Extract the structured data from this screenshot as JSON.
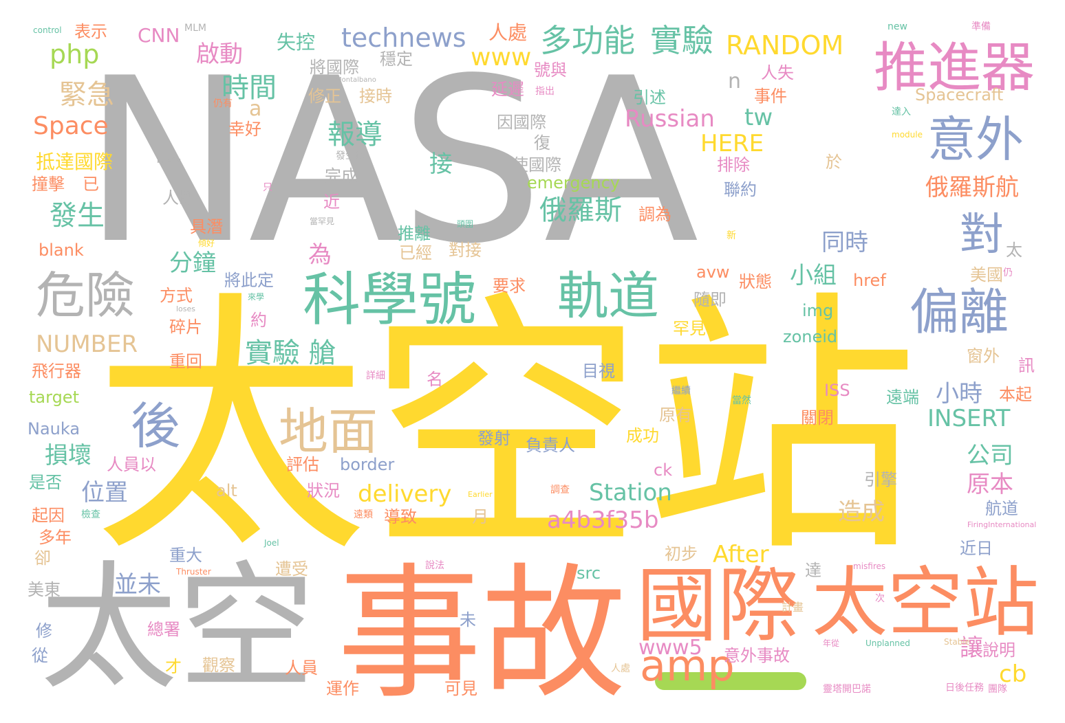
{
  "title": "",
  "palette": {
    "gray": "#b3b3b3",
    "yellow": "#ffd92f",
    "orange": "#fc8d62",
    "green": "#66c2a5",
    "blue": "#8da0cb",
    "pink": "#e78ac3",
    "lime": "#a6d854",
    "tan": "#e5c494"
  },
  "words": [
    "NASA",
    "太空站",
    "太空",
    "事故",
    "國際",
    "推進器",
    "意外",
    "科學號",
    "軌道",
    "危險",
    "地面",
    "偏離",
    "後",
    "對",
    "amp",
    "technews",
    "多功能",
    "實驗",
    "RANDOM",
    "php",
    "CNN",
    "MLM",
    "control",
    "表示",
    "失控",
    "人處",
    "準備",
    "new",
    "緊急",
    "時間",
    "Space",
    "www",
    "啟動",
    "報導",
    "Russian",
    "tw",
    "HERE",
    "Spacecraft",
    "抵達國際",
    "撞擊",
    "已",
    "發生",
    "分鐘",
    "實驗 艙",
    "NUMBER",
    "小組",
    "同時",
    "俄羅斯航",
    "俄羅斯",
    "INSERT",
    "小時",
    "delivery",
    "a4b3f35b",
    "Station",
    "After",
    "www5",
    "cb",
    "讓",
    "公司",
    "原本",
    "造成",
    "損壞",
    "位置",
    "blank",
    "飛行器",
    "target",
    "Nauka",
    "border",
    "ISS",
    "zoneid",
    "img",
    "href",
    "avw",
    "src",
    "意外事故",
    "emergency",
    "接",
    "完成",
    "排除",
    "聯約",
    "將國際",
    "穩定",
    "修正",
    "接時",
    "幸好",
    "因國際",
    "使國際",
    "人斷",
    "具潛",
    "推離",
    "為",
    "將此定",
    "要求",
    "碎片",
    "方式",
    "重回",
    "目視",
    "名",
    "評估",
    "狀況",
    "導致",
    "月",
    "負責人",
    "發射",
    "成功",
    "原有",
    "引擎",
    "航道",
    "近日",
    "遠端",
    "關閉",
    "本起",
    "窗外",
    "訊",
    "初步",
    "遭受",
    "重大",
    "並未",
    "總署",
    "觀察",
    "人員",
    "運作",
    "可見",
    "計畫",
    "說明",
    "年從",
    "靈塔開巴諾",
    "日後任務",
    "團隊",
    "Unplanned",
    "Stable",
    "Thruster",
    "misfires",
    "FiringInternational",
    "Earlier",
    "Joel",
    "Montalbano",
    "briefly",
    "loses",
    "module",
    "號與",
    "延遲",
    "指出",
    "引述",
    "事件",
    "人失",
    "仍有",
    "達入",
    "於",
    "只",
    "罕見",
    "狀態",
    "隨即",
    "對接",
    "已經",
    "太",
    "美國",
    "仍",
    "n",
    "a",
    "近",
    "alt",
    "ck",
    "調為",
    "是否",
    "起因",
    "多年",
    "卻",
    "美東",
    "修",
    "從",
    "才",
    "人員以",
    "未",
    "達",
    "新",
    "當罕見",
    "傾好",
    "來學",
    "約",
    "發生過",
    "調查",
    "繼續",
    "當然",
    "詳細",
    "說法",
    "檢查",
    "遠類",
    "次",
    "復",
    "頭圍",
    "人"
  ]
}
